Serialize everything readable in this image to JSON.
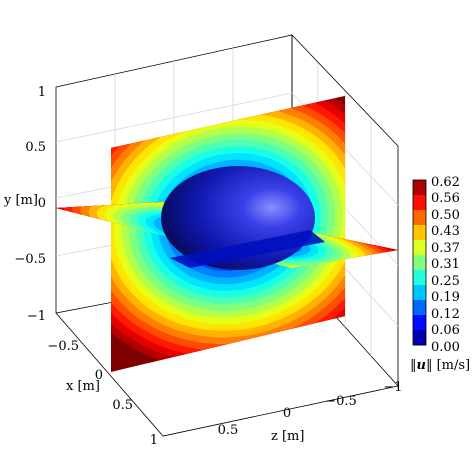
{
  "chart_data": {
    "type": "heatmap",
    "title": "",
    "xlabel": "x [m]",
    "ylabel": "y [m]",
    "zlabel": "z [m]",
    "x_ticks": [
      "−0.5",
      "0",
      "0.5",
      "1"
    ],
    "y_ticks": [
      "1",
      "0.5",
      "0",
      "−0.5",
      "−1"
    ],
    "z_ticks": [
      "0.5",
      "0",
      "−0.5",
      "−1"
    ],
    "xlim": [
      -1,
      1
    ],
    "ylim": [
      -1,
      1
    ],
    "zlim": [
      -1,
      1
    ],
    "grid": true,
    "colorbar": {
      "label": "‖u‖ [m/s]",
      "label_prefix": "‖",
      "label_var": "u",
      "label_suffix": "‖ [m/s]",
      "ticks": [
        "0.62",
        "0.56",
        "0.50",
        "0.43",
        "0.37",
        "0.31",
        "0.25",
        "0.19",
        "0.12",
        "0.06",
        "0.00"
      ],
      "min": 0.0,
      "max": 0.62,
      "levels": 20,
      "colormap": "jet"
    },
    "slices": [
      {
        "name": "plane-z-0",
        "orientation": "vertical"
      },
      {
        "name": "plane-y-0",
        "orientation": "horizontal"
      }
    ],
    "sphere": {
      "center": [
        0,
        0,
        0
      ],
      "radius": 0.5,
      "color": "#0a1a9a"
    },
    "colors": {
      "jet": [
        "#00007f",
        "#0000ff",
        "#007fff",
        "#00ffff",
        "#7fff7f",
        "#ffff00",
        "#ff7f00",
        "#ff0000",
        "#7f0000"
      ]
    }
  }
}
